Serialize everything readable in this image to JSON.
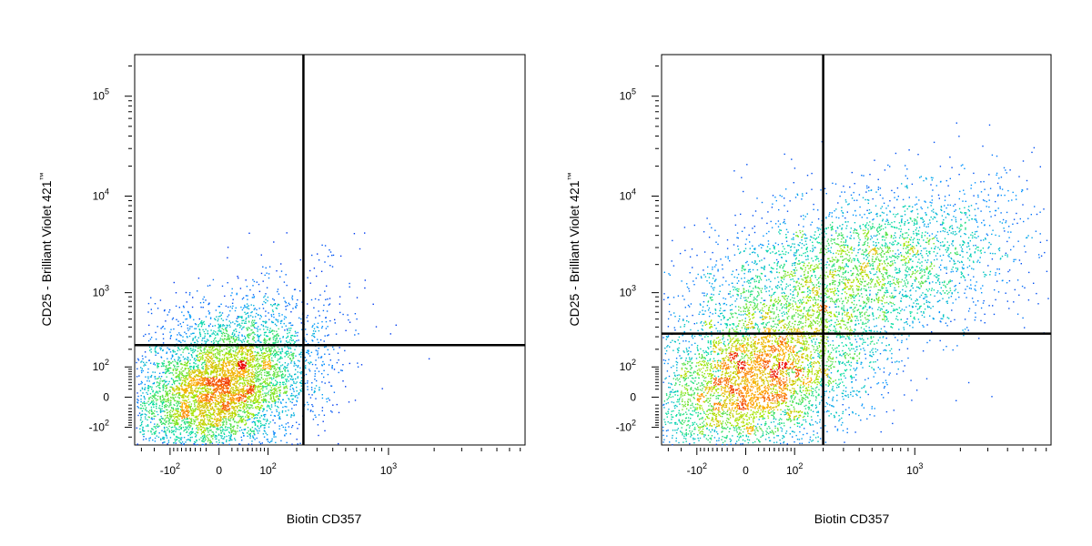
{
  "chart_data": [
    {
      "type": "scatter",
      "xlabel": "Biotin CD357",
      "ylabel": "CD25 - Brilliant Violet 421",
      "ylabel_mark": "™",
      "x_ticks": [
        {
          "value": -100,
          "base": "-10",
          "exp": "2"
        },
        {
          "value": 0,
          "base": "0",
          "exp": ""
        },
        {
          "value": 100,
          "base": "10",
          "exp": "2"
        },
        {
          "value": 1000,
          "base": "10",
          "exp": "3"
        }
      ],
      "y_ticks": [
        {
          "value": -100,
          "base": "-10",
          "exp": "2"
        },
        {
          "value": 0,
          "base": "0",
          "exp": ""
        },
        {
          "value": 100,
          "base": "10",
          "exp": "2"
        },
        {
          "value": 1000,
          "base": "10",
          "exp": "3"
        },
        {
          "value": 10000,
          "base": "10",
          "exp": "4"
        },
        {
          "value": 100000,
          "base": "10",
          "exp": "5"
        }
      ],
      "xlim": [
        -230,
        7500
      ],
      "ylim": [
        -200,
        260000
      ],
      "gate": {
        "x": 230,
        "y": 230
      },
      "populations": [
        {
          "cx": 0,
          "cy": 20,
          "sx": 0.28,
          "sy": 0.34,
          "n": 5200
        },
        {
          "cx": 40,
          "cy": 250,
          "sx": 0.32,
          "sy": 0.38,
          "n": 700
        },
        {
          "cx": 350,
          "cy": 2500,
          "sx": 0.06,
          "sy": 0.08,
          "n": 10
        }
      ]
    },
    {
      "type": "scatter",
      "xlabel": "Biotin CD357",
      "ylabel": "CD25 - Brilliant Violet 421",
      "ylabel_mark": "™",
      "x_ticks": [
        {
          "value": -100,
          "base": "-10",
          "exp": "2"
        },
        {
          "value": 0,
          "base": "0",
          "exp": ""
        },
        {
          "value": 100,
          "base": "10",
          "exp": "2"
        },
        {
          "value": 1000,
          "base": "10",
          "exp": "3"
        }
      ],
      "y_ticks": [
        {
          "value": -100,
          "base": "-10",
          "exp": "2"
        },
        {
          "value": 0,
          "base": "0",
          "exp": ""
        },
        {
          "value": 100,
          "base": "10",
          "exp": "2"
        },
        {
          "value": 1000,
          "base": "10",
          "exp": "3"
        },
        {
          "value": 10000,
          "base": "10",
          "exp": "4"
        },
        {
          "value": 100000,
          "base": "10",
          "exp": "5"
        }
      ],
      "xlim": [
        -230,
        7500
      ],
      "ylim": [
        -200,
        260000
      ],
      "gate": {
        "x": 200,
        "y": 330
      },
      "populations": [
        {
          "cx": 15,
          "cy": 40,
          "sx": 0.34,
          "sy": 0.36,
          "n": 4200
        },
        {
          "cx": 600,
          "cy": 2000,
          "sx": 0.42,
          "sy": 0.4,
          "n": 2600
        },
        {
          "cx": 60,
          "cy": 900,
          "sx": 0.38,
          "sy": 0.42,
          "n": 1200
        }
      ]
    }
  ]
}
